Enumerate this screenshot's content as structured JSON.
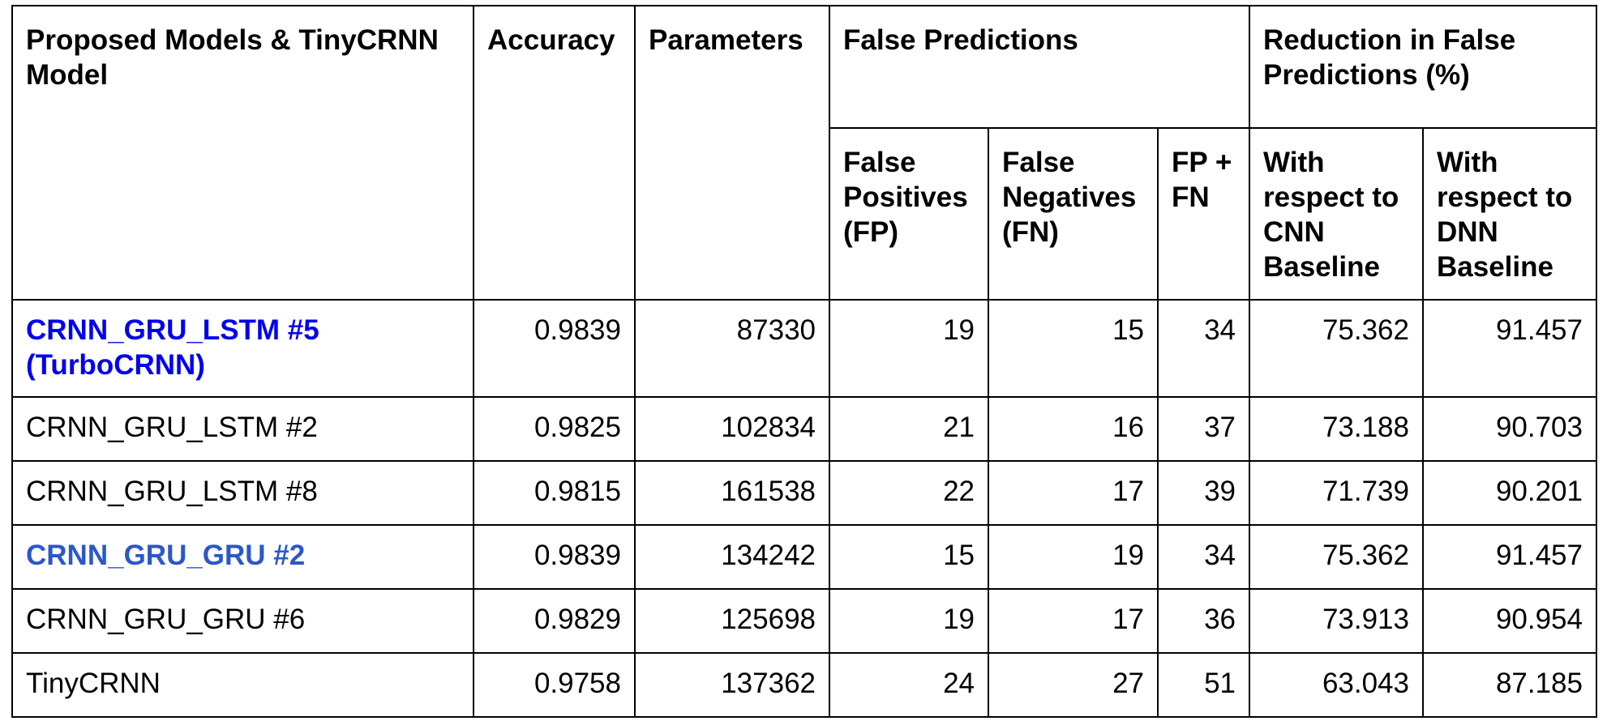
{
  "colors": {
    "highlight_primary": "#0000ee",
    "highlight_secondary": "#2b58c8",
    "text": "#000000",
    "border": "#000000"
  },
  "header": {
    "model": "Proposed Models & TinyCRNN Model",
    "accuracy": "Accuracy",
    "parameters": "Parameters",
    "false_predictions": "False Predictions",
    "reduction": "Reduction in False Predictions (%)",
    "fp": "False Positives (FP)",
    "fn": "False Negatives (FN)",
    "fp_fn": "FP + FN",
    "wrt_cnn": "With respect to CNN Baseline",
    "wrt_dnn": "With respect to DNN Baseline"
  },
  "rows": [
    {
      "model": "CRNN_GRU_LSTM #5 (TurboCRNN)",
      "accuracy": "0.9839",
      "parameters": "87330",
      "fp": "19",
      "fn": "15",
      "fp_fn": "34",
      "wrt_cnn": "75.362",
      "wrt_dnn": "91.457",
      "highlight": "primary"
    },
    {
      "model": "CRNN_GRU_LSTM #2",
      "accuracy": "0.9825",
      "parameters": "102834",
      "fp": "21",
      "fn": "16",
      "fp_fn": "37",
      "wrt_cnn": "73.188",
      "wrt_dnn": "90.703",
      "highlight": "none"
    },
    {
      "model": "CRNN_GRU_LSTM #8",
      "accuracy": "0.9815",
      "parameters": "161538",
      "fp": "22",
      "fn": "17",
      "fp_fn": "39",
      "wrt_cnn": "71.739",
      "wrt_dnn": "90.201",
      "highlight": "none"
    },
    {
      "model": "CRNN_GRU_GRU #2",
      "accuracy": "0.9839",
      "parameters": "134242",
      "fp": "15",
      "fn": "19",
      "fp_fn": "34",
      "wrt_cnn": "75.362",
      "wrt_dnn": "91.457",
      "highlight": "secondary"
    },
    {
      "model": "CRNN_GRU_GRU #6",
      "accuracy": "0.9829",
      "parameters": "125698",
      "fp": "19",
      "fn": "17",
      "fp_fn": "36",
      "wrt_cnn": "73.913",
      "wrt_dnn": "90.954",
      "highlight": "none"
    },
    {
      "model": "TinyCRNN",
      "accuracy": "0.9758",
      "parameters": "137362",
      "fp": "24",
      "fn": "27",
      "fp_fn": "51",
      "wrt_cnn": "63.043",
      "wrt_dnn": "87.185",
      "highlight": "none"
    }
  ]
}
